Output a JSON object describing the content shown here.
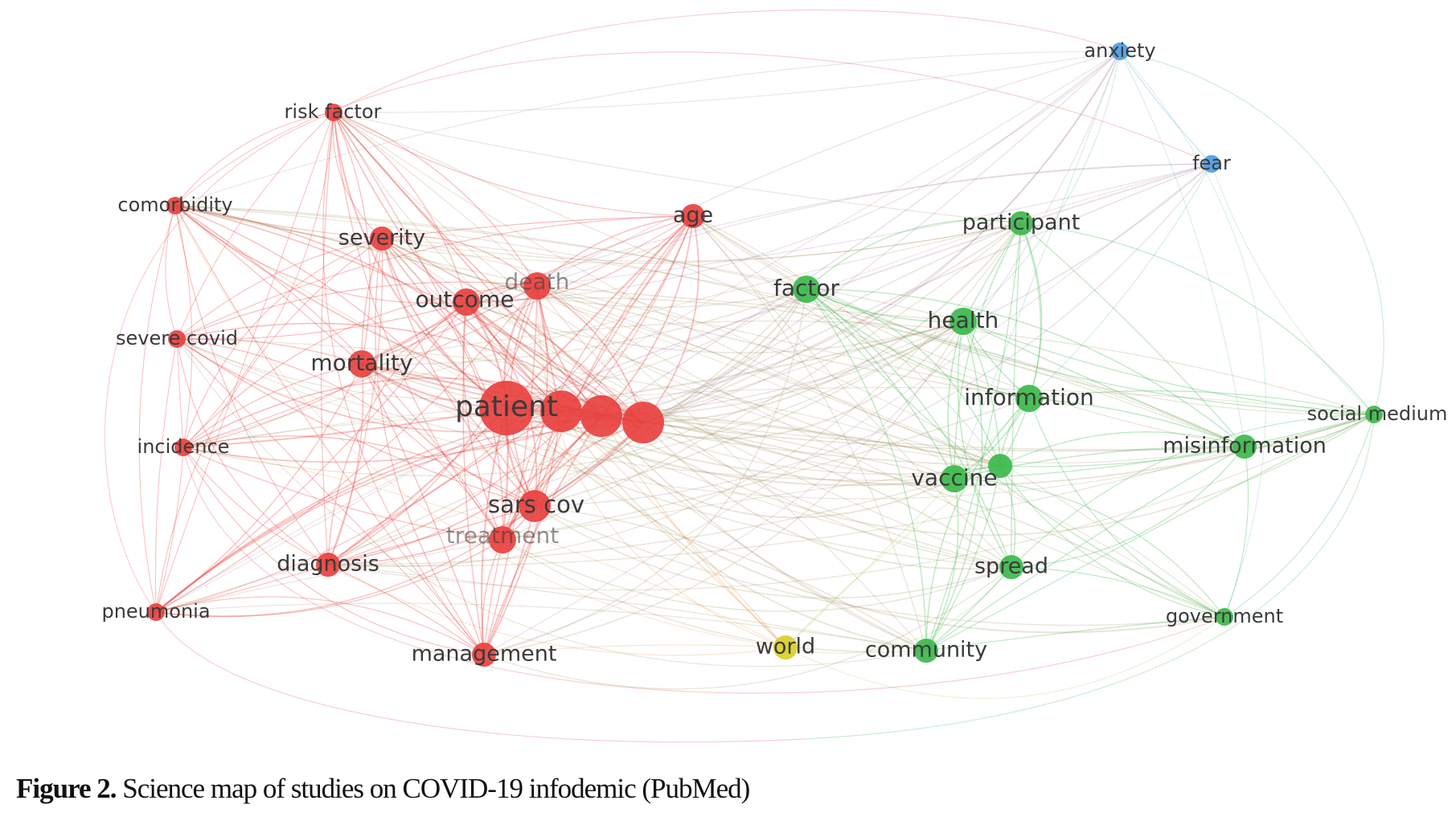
{
  "caption": {
    "label": "Figure 2.",
    "text": " Science map of studies on COVID-19 infodemic (PubMed)"
  },
  "clusters": {
    "red": "#e8413f",
    "green": "#3cb94b",
    "blue": "#4c9de0",
    "yellow": "#d9cf2a"
  },
  "nodes": [
    {
      "id": "patient",
      "label": "patient",
      "cluster": "red",
      "weight": 10
    },
    {
      "id": "unlabeled-red-1",
      "label": "",
      "cluster": "red",
      "weight": 7
    },
    {
      "id": "unlabeled-red-2",
      "label": "",
      "cluster": "red",
      "weight": 7
    },
    {
      "id": "unlabeled-red-3",
      "label": "",
      "cluster": "red",
      "weight": 7
    },
    {
      "id": "sars-cov",
      "label": "sars cov",
      "cluster": "red",
      "weight": 5
    },
    {
      "id": "treatment",
      "label": "treatment",
      "cluster": "red",
      "weight": 4
    },
    {
      "id": "outcome",
      "label": "outcome",
      "cluster": "red",
      "weight": 4
    },
    {
      "id": "death",
      "label": "death",
      "cluster": "red",
      "weight": 4
    },
    {
      "id": "mortality",
      "label": "mortality",
      "cluster": "red",
      "weight": 4
    },
    {
      "id": "severity",
      "label": "severity",
      "cluster": "red",
      "weight": 3
    },
    {
      "id": "age",
      "label": "age",
      "cluster": "red",
      "weight": 3
    },
    {
      "id": "risk-factor",
      "label": "risk factor",
      "cluster": "red",
      "weight": 2
    },
    {
      "id": "comorbidity",
      "label": "comorbidity",
      "cluster": "red",
      "weight": 2
    },
    {
      "id": "severe-covid",
      "label": "severe covid",
      "cluster": "red",
      "weight": 2
    },
    {
      "id": "incidence",
      "label": "incidence",
      "cluster": "red",
      "weight": 2
    },
    {
      "id": "pneumonia",
      "label": "pneumonia",
      "cluster": "red",
      "weight": 2
    },
    {
      "id": "diagnosis",
      "label": "diagnosis",
      "cluster": "red",
      "weight": 3
    },
    {
      "id": "management",
      "label": "management",
      "cluster": "red",
      "weight": 3
    },
    {
      "id": "world",
      "label": "world",
      "cluster": "yellow",
      "weight": 3
    },
    {
      "id": "community",
      "label": "community",
      "cluster": "green",
      "weight": 3
    },
    {
      "id": "spread",
      "label": "spread",
      "cluster": "green",
      "weight": 3
    },
    {
      "id": "vaccine",
      "label": "vaccine",
      "cluster": "green",
      "weight": 4
    },
    {
      "id": "unlabeled-green",
      "label": "",
      "cluster": "green",
      "weight": 3
    },
    {
      "id": "information",
      "label": "information",
      "cluster": "green",
      "weight": 4
    },
    {
      "id": "health",
      "label": "health",
      "cluster": "green",
      "weight": 4
    },
    {
      "id": "factor",
      "label": "factor",
      "cluster": "green",
      "weight": 4
    },
    {
      "id": "participant",
      "label": "participant",
      "cluster": "green",
      "weight": 3
    },
    {
      "id": "misinformation",
      "label": "misinformation",
      "cluster": "green",
      "weight": 3
    },
    {
      "id": "social-medium",
      "label": "social medium",
      "cluster": "green",
      "weight": 2
    },
    {
      "id": "government",
      "label": "government",
      "cluster": "green",
      "weight": 2
    },
    {
      "id": "anxiety",
      "label": "anxiety",
      "cluster": "blue",
      "weight": 2
    },
    {
      "id": "fear",
      "label": "fear",
      "cluster": "blue",
      "weight": 2
    }
  ]
}
